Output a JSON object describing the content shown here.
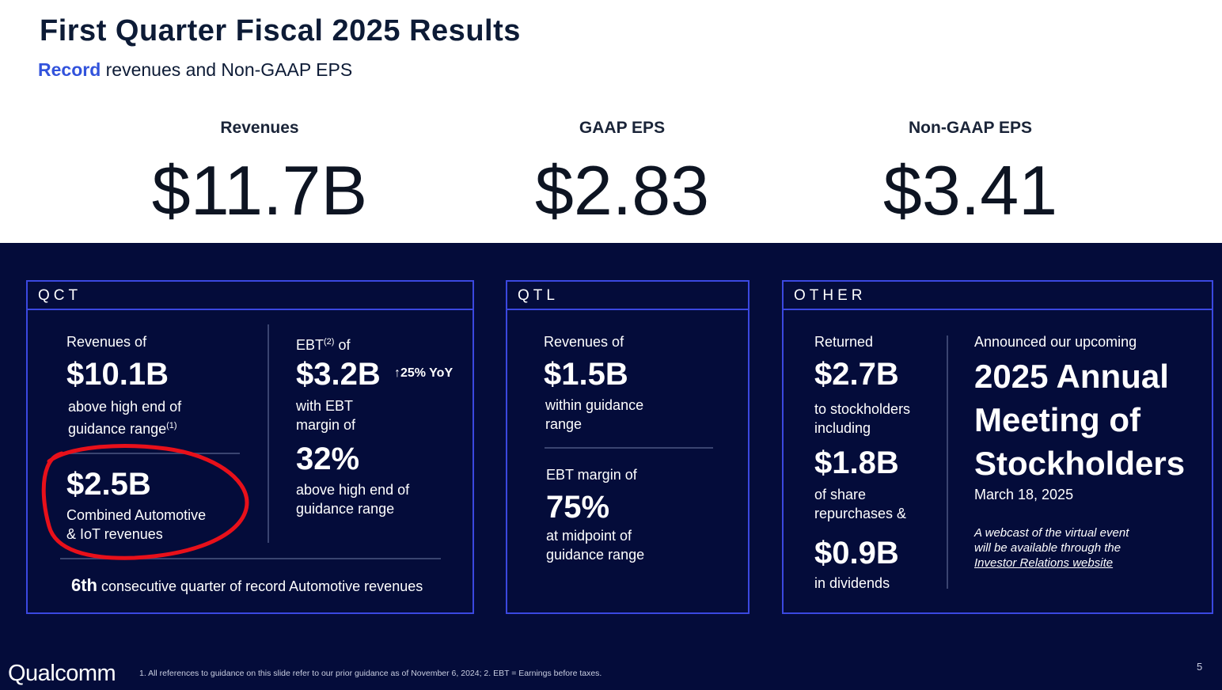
{
  "header": {
    "title": "First Quarter Fiscal 2025 Results",
    "subtitle_accent": "Record",
    "subtitle_rest": " revenues and Non-GAAP EPS"
  },
  "metrics": [
    {
      "label": "Revenues",
      "value": "$11.7B"
    },
    {
      "label": "GAAP EPS",
      "value": "$2.83"
    },
    {
      "label": "Non-GAAP EPS",
      "value": "$3.41"
    }
  ],
  "qct": {
    "header": "QCT",
    "rev_label": "Revenues of",
    "rev_value": "$10.1B",
    "rev_desc_1": "above high end of",
    "rev_desc_2": "guidance range",
    "rev_sup": "(1)",
    "auto_value": "$2.5B",
    "auto_desc_1": "Combined Automotive",
    "auto_desc_2": "& IoT revenues",
    "ebt_label": "EBT",
    "ebt_sup": "(2)",
    "ebt_label_rest": " of",
    "ebt_value": "$3.2B",
    "ebt_yoy": "↑25% YoY",
    "ebt_desc_1": "with EBT",
    "ebt_desc_2": "margin of",
    "margin_value": "32%",
    "margin_desc_1": "above high end of",
    "margin_desc_2": "guidance range",
    "footer_bold": "6th",
    "footer_rest": " consecutive quarter of record Automotive revenues"
  },
  "qtl": {
    "header": "QTL",
    "rev_label": "Revenues of",
    "rev_value": "$1.5B",
    "rev_desc_1": "within guidance",
    "rev_desc_2": "range",
    "ebt_label": "EBT margin of",
    "ebt_value": "75%",
    "ebt_desc_1": "at midpoint of",
    "ebt_desc_2": "guidance range"
  },
  "other": {
    "header": "OTHER",
    "returned_label": "Returned",
    "returned_value": "$2.7B",
    "returned_desc_1": "to stockholders",
    "returned_desc_2": "including",
    "share_value": "$1.8B",
    "share_desc_1": "of share",
    "share_desc_2": "repurchases &",
    "div_value": "$0.9B",
    "div_desc": "in dividends",
    "announce_label": "Announced our upcoming",
    "meeting_1": "2025 Annual",
    "meeting_2": "Meeting of",
    "meeting_3": "Stockholders",
    "meeting_date": "March 18, 2025",
    "webcast_1": "A webcast of the virtual event",
    "webcast_2": "will be available through the",
    "webcast_link": "Investor Relations website"
  },
  "footer": {
    "logo": "Qualcomm",
    "footnote": "1. All references to guidance on this slide refer to our prior guidance as of November 6, 2024; 2. EBT = Earnings before taxes.",
    "page": "5"
  },
  "colors": {
    "accent": "#3253dc",
    "dark_bg": "#040c3a",
    "panel_border": "#3b48e0",
    "annotation": "#e8101a"
  }
}
